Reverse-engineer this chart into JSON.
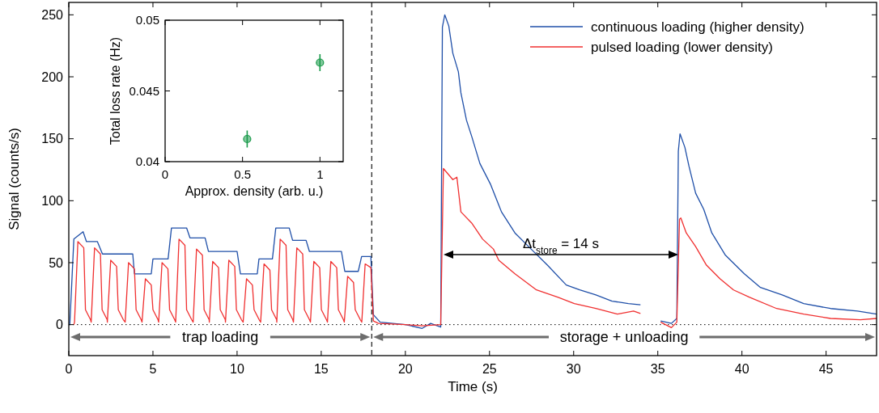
{
  "chart_data": [
    {
      "type": "line",
      "xlabel": "Time (s)",
      "ylabel": "Signal (counts/s)",
      "xlim": [
        0,
        48
      ],
      "xticks": [
        0,
        5,
        10,
        15,
        20,
        25,
        30,
        35,
        40,
        45
      ],
      "ylim": [
        -25,
        260
      ],
      "yticks": [
        0,
        50,
        100,
        150,
        200,
        250
      ],
      "legend": "top right",
      "line_style": "solid",
      "ref_lines": [
        {
          "axis": "x",
          "value": 18,
          "line_style": "dashed",
          "color": "#000000"
        },
        {
          "axis": "y",
          "value": 0,
          "line_style": "dotted",
          "color": "#000000"
        }
      ],
      "annotations": [
        "trap loading",
        "storage + unloading",
        "Δt$_{store}$ = 14 s"
      ],
      "series": [
        {
          "name": "continuous loading (higher density)",
          "color": "#1f4fa8",
          "x": [
            0,
            0.06,
            0.3,
            0.85,
            1.05,
            1.7,
            2.0,
            3.8,
            3.9,
            4.9,
            5.0,
            5.9,
            6.1,
            7.0,
            7.2,
            8.1,
            8.3,
            10.0,
            10.2,
            11.2,
            11.3,
            12.1,
            12.3,
            13.1,
            13.3,
            14.1,
            14.3,
            16.2,
            16.4,
            17.2,
            17.4,
            17.95,
            18.1,
            18.5,
            20,
            21,
            21.5,
            22.1,
            22.2,
            22.34,
            22.58,
            22.82,
            23.15,
            23.3,
            23.63,
            23.94,
            24.43,
            25.07,
            25.71,
            26.51,
            27.47,
            28.44,
            29.56,
            30.36,
            31.32,
            32.28,
            33.25,
            33.97,
            34.5,
            35.17,
            35.81,
            36.13,
            36.22,
            36.32,
            36.61,
            36.85,
            37.25,
            37.73,
            38.21,
            39.02,
            40.14,
            41.1,
            42.39,
            43.67,
            45.27,
            46.87,
            48
          ],
          "values": [
            0,
            0,
            69,
            75,
            67,
            67,
            57,
            57,
            41,
            41,
            53,
            53,
            78,
            78,
            70,
            70,
            59,
            59,
            41,
            41,
            53,
            53,
            78,
            78,
            68,
            68,
            59,
            59,
            43,
            43,
            55,
            55,
            8,
            2,
            0,
            -3,
            1,
            -2,
            240,
            250,
            241,
            219,
            204,
            187,
            165,
            152,
            130,
            113,
            91,
            74,
            61,
            48,
            32,
            28,
            24,
            19,
            17,
            16,
            null,
            3,
            1,
            5,
            140,
            154,
            143,
            128,
            106,
            93,
            74,
            56,
            41,
            30,
            24,
            17,
            13,
            11,
            8.5
          ]
        },
        {
          "name": "pulsed loading (lower density)",
          "color": "#f03030",
          "x": [
            0.3,
            0.34,
            0.54,
            0.89,
            0.99,
            1.29,
            1.33,
            1.53,
            1.88,
            1.98,
            2.28,
            2.29,
            2.49,
            2.84,
            2.94,
            3.24,
            3.35,
            3.55,
            3.9,
            4.0,
            4.3,
            4.35,
            4.55,
            4.9,
            5.0,
            5.3,
            5.34,
            5.54,
            5.89,
            5.99,
            6.29,
            6.35,
            6.55,
            6.9,
            7.0,
            7.3,
            7.39,
            7.59,
            7.94,
            8.04,
            8.34,
            8.35,
            8.55,
            8.9,
            9.0,
            9.3,
            9.31,
            9.51,
            9.86,
            9.96,
            10.26,
            10.36,
            10.56,
            10.91,
            11.01,
            11.31,
            11.4,
            11.6,
            11.95,
            12.05,
            12.35,
            12.36,
            12.56,
            12.91,
            13.01,
            13.31,
            13.35,
            13.55,
            13.9,
            14.0,
            14.3,
            14.36,
            14.56,
            14.91,
            15.01,
            15.31,
            15.37,
            15.57,
            15.92,
            16.02,
            16.32,
            16.37,
            16.57,
            16.92,
            17.02,
            17.32,
            17.41,
            17.61,
            17.95,
            18.1,
            18.4,
            20,
            21,
            22.1,
            22.26,
            22.82,
            23.06,
            23.3,
            23.94,
            24.59,
            25.23,
            25.55,
            26.51,
            27.79,
            29.08,
            30.04,
            31.32,
            32.6,
            33.56,
            33.97,
            34.5,
            35.17,
            35.81,
            36.13,
            36.29,
            36.37,
            36.69,
            37.25,
            37.89,
            38.7,
            39.5,
            40.46,
            42.06,
            43.67,
            45.27,
            47.03,
            48
          ],
          "values": [
            0,
            2,
            67,
            62,
            12,
            4,
            2,
            62,
            57,
            12,
            4,
            2,
            52,
            47,
            12,
            4,
            2,
            50,
            45,
            12,
            4,
            2,
            37,
            32,
            12,
            4,
            2,
            50,
            45,
            12,
            4,
            2,
            69,
            64,
            12,
            4,
            2,
            61,
            56,
            12,
            4,
            2,
            51,
            46,
            12,
            4,
            2,
            52,
            47,
            12,
            4,
            2,
            37,
            32,
            12,
            4,
            2,
            49,
            44,
            12,
            4,
            2,
            69,
            64,
            12,
            4,
            2,
            62,
            57,
            12,
            4,
            2,
            51,
            46,
            12,
            4,
            2,
            51,
            46,
            12,
            4,
            2,
            39,
            34,
            12,
            4,
            2,
            49,
            46,
            3,
            1,
            0,
            -1,
            0,
            126,
            117,
            119,
            91,
            82,
            69,
            61,
            52,
            41,
            28,
            22,
            17,
            13,
            8.5,
            11,
            9,
            null,
            2,
            -2.4,
            2,
            85,
            86,
            74,
            63,
            48,
            37,
            28,
            22,
            13,
            8.5,
            5,
            4,
            5
          ]
        }
      ]
    },
    {
      "type": "scatter",
      "xlabel": "Approx. density (arb. u.)",
      "ylabel": "Total loss rate (Hz)",
      "xlim": [
        0,
        1.15
      ],
      "xticks": [
        0,
        0.5,
        1
      ],
      "ylim": [
        0.04,
        0.05
      ],
      "yticks": [
        0.04,
        0.045,
        0.05
      ],
      "marker": "circle",
      "series": [
        {
          "color": "#1a9a4a",
          "x": [
            0.53,
            1
          ],
          "values": [
            0.0416,
            0.047
          ],
          "errors": [
            0.0006,
            0.0006
          ]
        }
      ]
    }
  ]
}
